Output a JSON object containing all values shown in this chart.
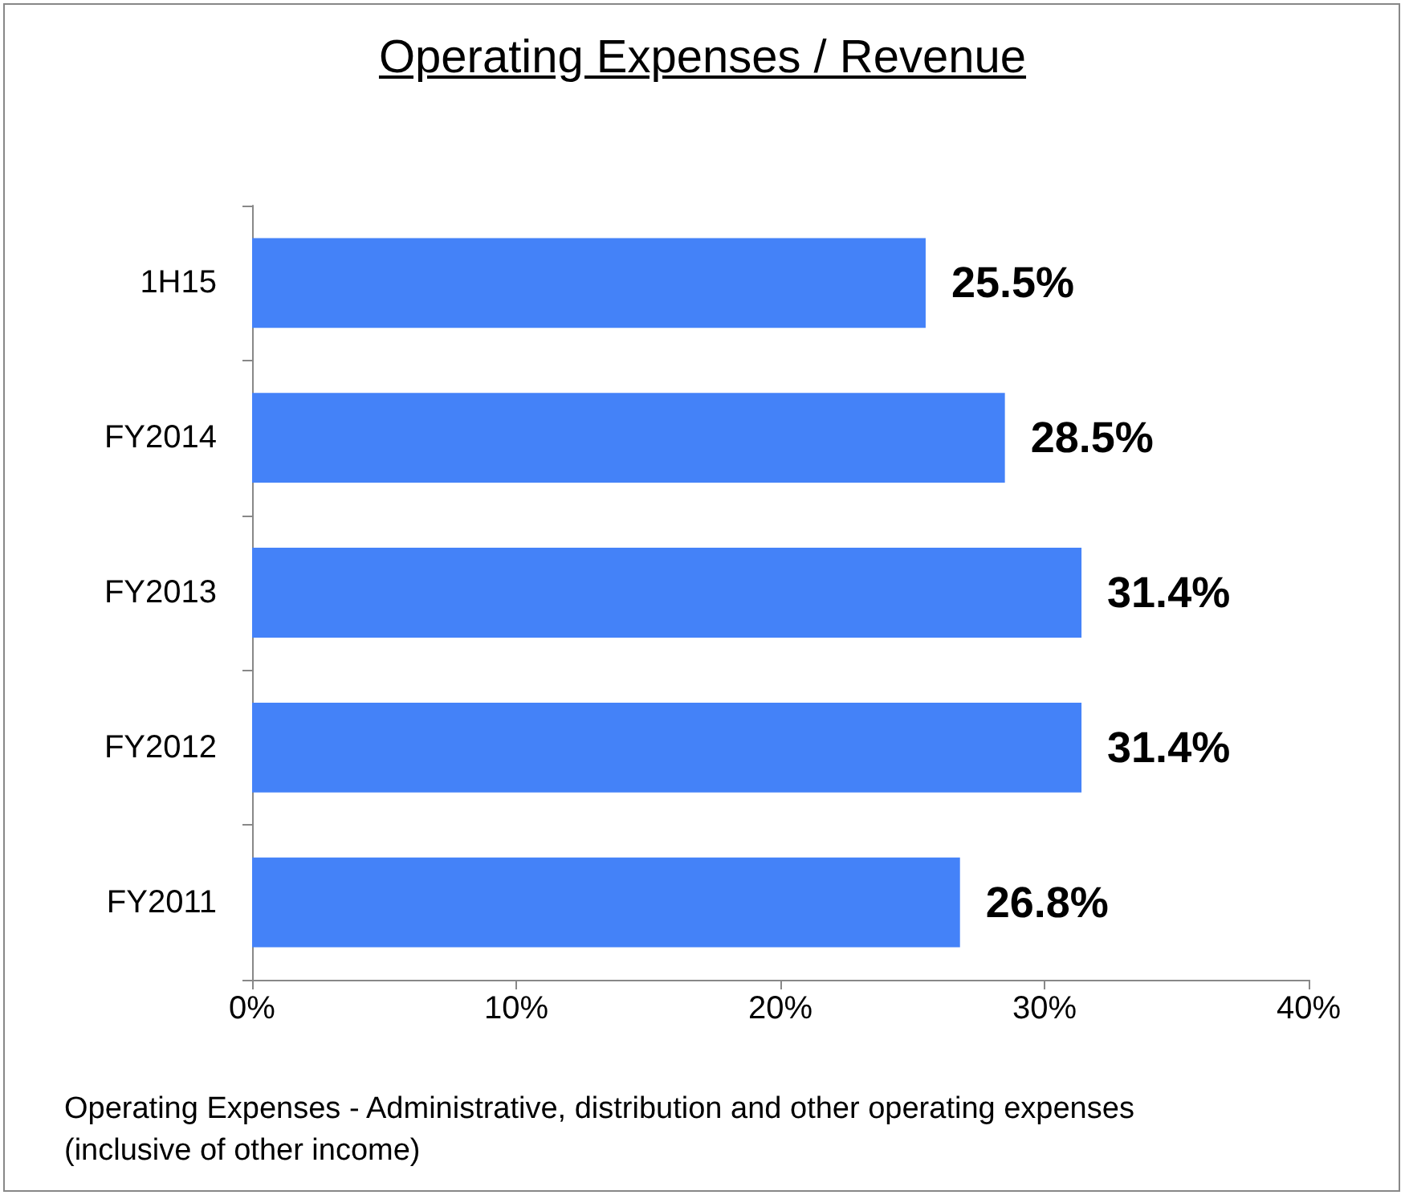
{
  "chart_data": {
    "type": "bar",
    "orientation": "horizontal",
    "title": "Operating Expenses / Revenue",
    "categories": [
      "1H15",
      "FY2014",
      "FY2013",
      "FY2012",
      "FY2011"
    ],
    "values": [
      25.5,
      28.5,
      31.4,
      31.4,
      26.8
    ],
    "value_labels": [
      "25.5%",
      "28.5%",
      "31.4%",
      "31.4%",
      "26.8%"
    ],
    "color": "#4482f8",
    "xlim": [
      0,
      40
    ],
    "xticks": [
      {
        "value": 0,
        "label": "0%"
      },
      {
        "value": 10,
        "label": "10%"
      },
      {
        "value": 20,
        "label": "20%"
      },
      {
        "value": 30,
        "label": "30%"
      },
      {
        "value": 40,
        "label": "40%"
      }
    ],
    "grid": false,
    "annotations": [
      "Operating Expenses - Administrative, distribution and other operating expenses  (inclusive of other income)"
    ]
  }
}
